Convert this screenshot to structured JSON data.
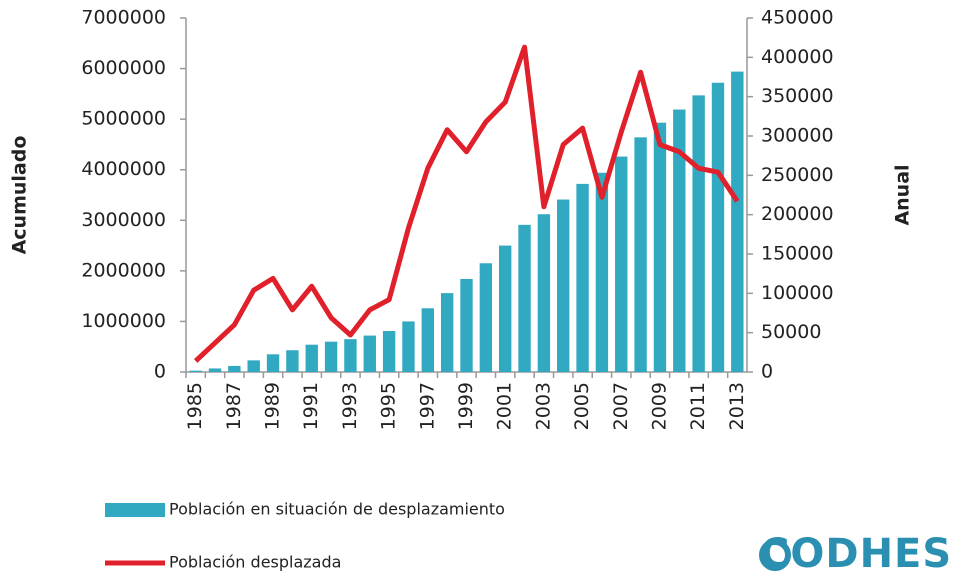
{
  "chart_data": {
    "type": "bar_line",
    "categories": [
      "1985",
      null,
      "1987",
      null,
      "1989",
      null,
      "1991",
      null,
      "1993",
      null,
      "1995",
      null,
      "1997",
      null,
      "1999",
      null,
      "2001",
      null,
      "2003",
      null,
      "2005",
      null,
      "2007",
      null,
      "2009",
      null,
      "2011",
      null,
      "2013"
    ],
    "series": [
      {
        "name": "Población en situación de desplazamiento",
        "type": "bar",
        "color": "#31a9c1",
        "values": [
          27000,
          70000,
          120000,
          230000,
          350000,
          430000,
          540000,
          600000,
          650000,
          720000,
          810000,
          1000000,
          1260000,
          1560000,
          1840000,
          2150000,
          2500000,
          2910000,
          3120000,
          3410000,
          3720000,
          3940000,
          4260000,
          4640000,
          4930000,
          5190000,
          5470000,
          5720000,
          5940000
        ]
      },
      {
        "name": "Población desplazada",
        "type": "line",
        "axis": "y2",
        "color": "#e0202a",
        "values": [
          14000,
          37000,
          60000,
          104000,
          119000,
          79000,
          109000,
          69000,
          47000,
          79000,
          92000,
          183000,
          259000,
          308000,
          280000,
          318000,
          343000,
          413000,
          210000,
          289000,
          310000,
          222000,
          305000,
          381000,
          289000,
          280000,
          259000,
          254000,
          217000
        ]
      }
    ],
    "ylabel": "Acumulado",
    "y2label": "Anual",
    "ylim": [
      0,
      7000000
    ],
    "yticks": [
      0,
      1000000,
      2000000,
      3000000,
      4000000,
      5000000,
      6000000,
      7000000
    ],
    "y2lim": [
      0,
      450000
    ],
    "y2ticks": [
      0,
      50000,
      100000,
      150000,
      200000,
      250000,
      300000,
      350000,
      400000,
      450000
    ],
    "legend": "bottom-left",
    "logo": "CODHES"
  }
}
